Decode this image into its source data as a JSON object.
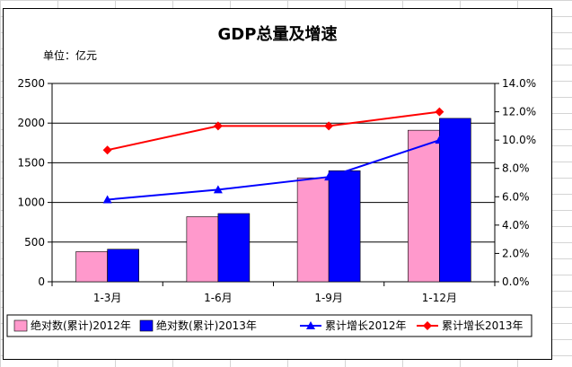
{
  "chart_data": {
    "type": "bar+line",
    "title": "GDP总量及增速",
    "unit_label": "单位：亿元",
    "categories": [
      "1-3月",
      "1-6月",
      "1-9月",
      "1-12月"
    ],
    "bar_series": [
      {
        "name": "绝对数(累计)2012年",
        "values": [
          380,
          820,
          1310,
          1910
        ],
        "color": "#ff99cc"
      },
      {
        "name": "绝对数(累计)2013年",
        "values": [
          410,
          860,
          1400,
          2060
        ],
        "color": "#0000ff"
      }
    ],
    "line_series": [
      {
        "name": "累计增长2012年",
        "values": [
          5.8,
          6.5,
          7.4,
          10.0
        ],
        "color": "#0000ff",
        "marker": "triangle"
      },
      {
        "name": "累计增长2013年",
        "values": [
          9.3,
          11.0,
          11.0,
          12.0
        ],
        "color": "#ff0000",
        "marker": "diamond"
      }
    ],
    "y_left": {
      "min": 0,
      "max": 2500,
      "step": 500,
      "ticks": [
        "0",
        "500",
        "1000",
        "1500",
        "2000",
        "2500"
      ]
    },
    "y_right": {
      "min": 0,
      "max": 14,
      "step": 2,
      "ticks": [
        "0.0%",
        "2.0%",
        "4.0%",
        "6.0%",
        "8.0%",
        "10.0%",
        "12.0%",
        "14.0%"
      ]
    },
    "grid": true,
    "legend_position": "bottom"
  }
}
